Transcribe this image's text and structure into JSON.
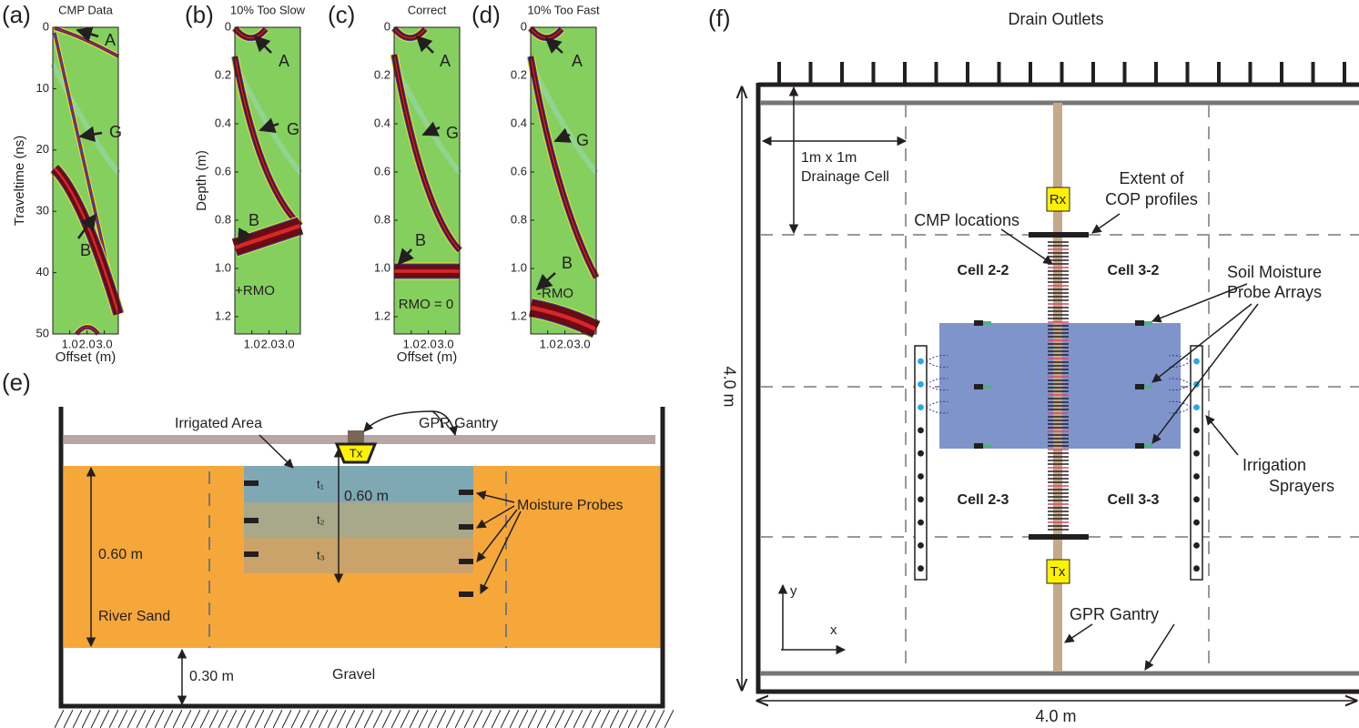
{
  "panels": {
    "a": {
      "label": "(a)",
      "title": "CMP Data",
      "ylabel": "Traveltime (ns)",
      "yticks": [
        "0",
        "10",
        "20",
        "30",
        "40",
        "50"
      ],
      "xticks": [
        "1.0",
        "2.0",
        "3.0"
      ],
      "xlabel": "Offset (m)",
      "annotations": [
        "A",
        "G",
        "B"
      ]
    },
    "b": {
      "label": "(b)",
      "title": "10% Too Slow",
      "ylabel": "Depth (m)",
      "yticks": [
        "0",
        "0.2",
        "0.4",
        "0.6",
        "0.8",
        "1.0",
        "1.2"
      ],
      "xticks": [
        "1.0",
        "2.0",
        "3.0"
      ],
      "annotations": [
        "A",
        "G",
        "B",
        "+RMO"
      ]
    },
    "c": {
      "label": "(c)",
      "title": "Correct",
      "yticks": [
        "0",
        "0.2",
        "0.4",
        "0.6",
        "0.8",
        "1.0",
        "1.2"
      ],
      "xticks": [
        "1.0",
        "2.0",
        "3.0"
      ],
      "xlabel": "Offset (m)",
      "annotations": [
        "A",
        "G",
        "B",
        "RMO = 0"
      ]
    },
    "d": {
      "label": "(d)",
      "title": "10% Too Fast",
      "yticks": [
        "0",
        "0.2",
        "0.4",
        "0.6",
        "0.8",
        "1.0",
        "1.2"
      ],
      "xticks": [
        "1.0",
        "2.0",
        "3.0"
      ],
      "annotations": [
        "A",
        "G",
        "B",
        "-RMO"
      ]
    },
    "e": {
      "label": "(e)",
      "irrigated_area": "Irrigated Area",
      "gpr_gantry": "GPR Gantry",
      "tx": "Tx",
      "layers": [
        "t₁",
        "t₂",
        "t₃"
      ],
      "depth_label": "0.60 m",
      "moisture_probes": "Moisture Probes",
      "sand_depth": "0.60 m",
      "river_sand": "River Sand",
      "gravel_depth": "0.30 m",
      "gravel": "Gravel"
    },
    "f": {
      "label": "(f)",
      "drain_outlets": "Drain Outlets",
      "cell_size": [
        "1m x 1m",
        "Drainage Cell"
      ],
      "cop_extent": [
        "Extent of",
        "COP profiles"
      ],
      "rx": "Rx",
      "cmp_locations": "CMP locations",
      "cells": [
        "Cell 2-2",
        "Cell 3-2",
        "Cell 2-3",
        "Cell 3-3"
      ],
      "probe_arrays": [
        "Soil Moisture",
        "Probe Arrays"
      ],
      "height": "4.0 m",
      "sprayers": [
        "Irrigation",
        "Sprayers"
      ],
      "tx": "Tx",
      "axis_y": "y",
      "axis_x": "x",
      "gpr_gantry": "GPR Gantry",
      "width": "4.0 m"
    }
  }
}
